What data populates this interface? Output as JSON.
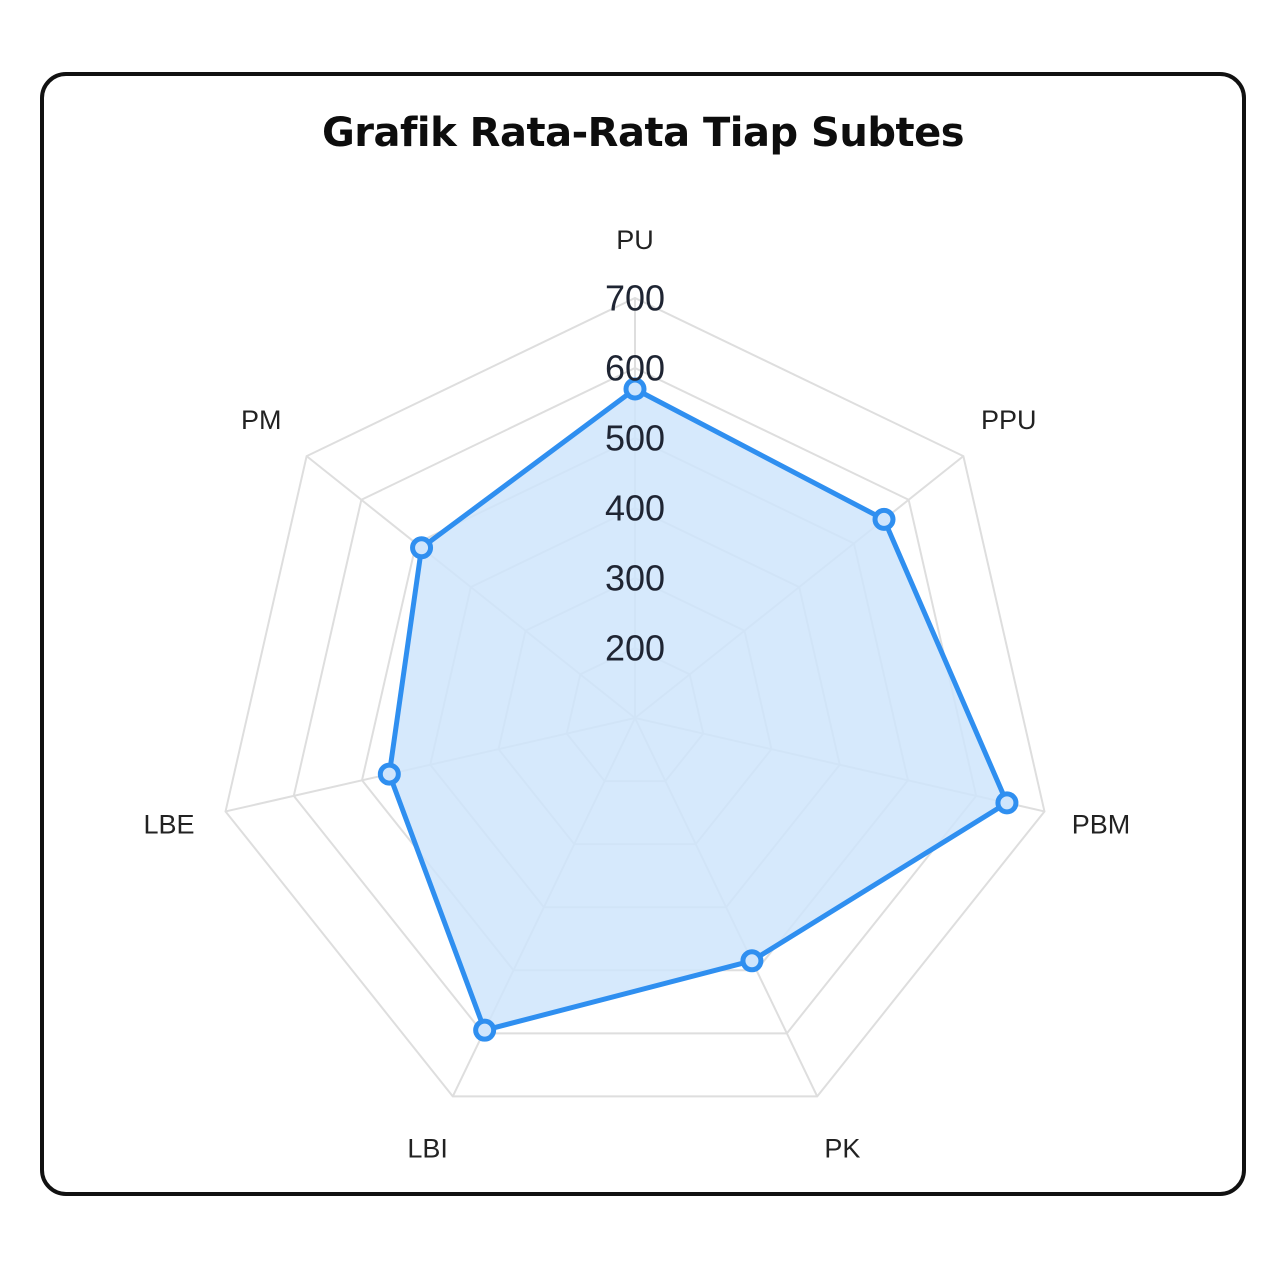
{
  "chart_data": {
    "type": "radar",
    "title": "Grafik Rata-Rata Tiap Subtes",
    "categories": [
      "PU",
      "PPU",
      "PBM",
      "PK",
      "LBI",
      "LBE",
      "PM"
    ],
    "series": [
      {
        "values": [
          570,
          555,
          645,
          485,
          595,
          460,
          490
        ]
      }
    ],
    "r_ticks": [
      200,
      300,
      400,
      500,
      600,
      700
    ],
    "r_range": [
      100,
      700
    ],
    "grid": true,
    "colors": {
      "line": "#2f8ff0",
      "fill": "#cfe5fc",
      "grid": "#dedede"
    }
  }
}
